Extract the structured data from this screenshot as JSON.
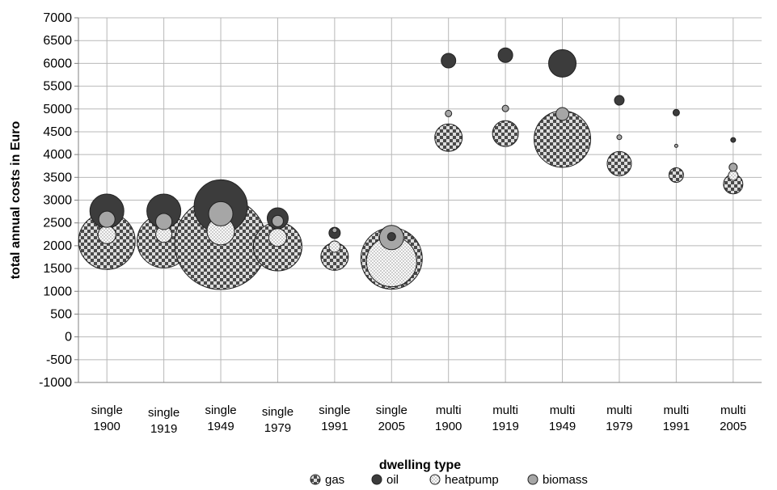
{
  "chart_data": {
    "type": "bubble",
    "xlabel": "dwelling type",
    "ylabel": "total annual costs in Euro",
    "ylim": [
      -1000,
      7000
    ],
    "ystep": 500,
    "grid": true,
    "legend_position": "bottom",
    "categories": [
      [
        "single",
        "1900"
      ],
      [
        "single",
        "1919"
      ],
      [
        "single",
        "1949"
      ],
      [
        "single",
        "1979"
      ],
      [
        "single",
        "1991"
      ],
      [
        "single",
        "2005"
      ],
      [
        "multi",
        "1900"
      ],
      [
        "multi",
        "1919"
      ],
      [
        "multi",
        "1949"
      ],
      [
        "multi",
        "1979"
      ],
      [
        "multi",
        "1991"
      ],
      [
        "multi",
        "2005"
      ]
    ],
    "series": [
      {
        "name": "gas",
        "pattern": "checker",
        "color": "#555555",
        "values": [
          2100,
          2100,
          2050,
          1980,
          1760,
          1720,
          4370,
          4460,
          4340,
          3800,
          3550,
          3350
        ],
        "sizes": [
          35,
          33,
          57,
          30,
          17,
          38,
          17,
          16,
          35,
          15,
          9,
          12
        ]
      },
      {
        "name": "oil",
        "pattern": "solid",
        "color": "#3c3c3c",
        "values": [
          2760,
          2760,
          2860,
          2600,
          2280,
          2200,
          6060,
          6180,
          6000,
          5190,
          4920,
          4320
        ],
        "sizes": [
          21,
          21,
          33,
          13,
          7,
          5,
          9,
          9,
          17,
          6,
          4,
          3
        ]
      },
      {
        "name": "heatpump",
        "pattern": "dots",
        "color": "#f4f4f4",
        "values": [
          2240,
          2250,
          2320,
          2180,
          1980,
          1650,
          0,
          0,
          0,
          0,
          0,
          3540
        ],
        "sizes": [
          11,
          10,
          17,
          11,
          7,
          31,
          0,
          0,
          0,
          0,
          0,
          6
        ]
      },
      {
        "name": "biomass",
        "pattern": "solid",
        "color": "#a6a6a6",
        "values": [
          2580,
          2530,
          2700,
          2540,
          2340,
          2180,
          4900,
          5010,
          4890,
          4380,
          4190,
          3720
        ],
        "sizes": [
          10,
          10,
          15,
          7,
          3,
          15,
          4,
          4,
          8,
          3,
          2,
          5
        ]
      }
    ]
  }
}
